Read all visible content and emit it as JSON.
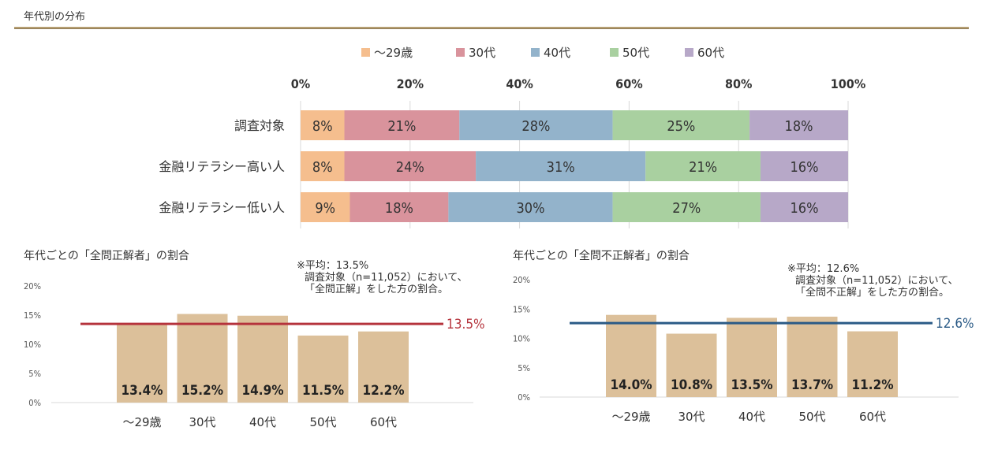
{
  "page_title": "年代別の分布",
  "colors": {
    "accent_rule": "#b59b6a",
    "band_10s_20s": "#f5be8e",
    "band_30s": "#d9939c",
    "band_40s": "#93b3cb",
    "band_50s": "#a9d0a0",
    "band_60s": "#b7a8c8",
    "bar_fill": "#dcc09a",
    "avg_line_left": "#b5333c",
    "avg_line_right": "#2a5a86"
  },
  "left_chart": {
    "title": "年代ごとの「全問正解者」の割合",
    "note": [
      "※平均：13.5%",
      "調査対象（n=11,052）において、",
      "「全問正解」をした方の割合。"
    ]
  },
  "right_chart": {
    "title": "年代ごとの「全問不正解者」の割合",
    "note": [
      "※平均：12.6%",
      "調査対象（n=11,052）において、",
      "「全問不正解」をした方の割合。"
    ]
  },
  "chart_data": [
    {
      "type": "bar",
      "orientation": "horizontal",
      "stacked": "100%",
      "categories": [
        "調査対象",
        "金融リテラシー高い人",
        "金融リテラシー低い人"
      ],
      "series": [
        {
          "name": "～29歳",
          "values": [
            8,
            8,
            9
          ]
        },
        {
          "name": "30代",
          "values": [
            21,
            24,
            18
          ]
        },
        {
          "name": "40代",
          "values": [
            28,
            31,
            30
          ]
        },
        {
          "name": "50代",
          "values": [
            25,
            21,
            27
          ]
        },
        {
          "name": "60代",
          "values": [
            18,
            16,
            16
          ]
        }
      ],
      "xlim": [
        0,
        100
      ],
      "xticks": [
        "0%",
        "20%",
        "40%",
        "60%",
        "80%",
        "100%"
      ],
      "legend": "top",
      "grid": true
    },
    {
      "type": "bar",
      "title": "年代ごとの「全問正解者」の割合",
      "categories": [
        "～29歳",
        "30代",
        "40代",
        "50代",
        "60代"
      ],
      "values": [
        13.4,
        15.2,
        14.9,
        11.5,
        12.2
      ],
      "value_labels": [
        "13.4%",
        "15.2%",
        "14.9%",
        "11.5%",
        "12.2%"
      ],
      "ylim": [
        0,
        20
      ],
      "yticks": [
        "0%",
        "5%",
        "10%",
        "15%",
        "20%"
      ],
      "reference_line": {
        "value": 13.5,
        "label": "13.5%"
      }
    },
    {
      "type": "bar",
      "title": "年代ごとの「全問不正解者」の割合",
      "categories": [
        "～29歳",
        "30代",
        "40代",
        "50代",
        "60代"
      ],
      "values": [
        14.0,
        10.8,
        13.5,
        13.7,
        11.2
      ],
      "value_labels": [
        "14.0%",
        "10.8%",
        "13.5%",
        "13.7%",
        "11.2%"
      ],
      "ylim": [
        0,
        20
      ],
      "yticks": [
        "0%",
        "5%",
        "10%",
        "15%",
        "20%"
      ],
      "reference_line": {
        "value": 12.6,
        "label": "12.6%"
      }
    }
  ]
}
